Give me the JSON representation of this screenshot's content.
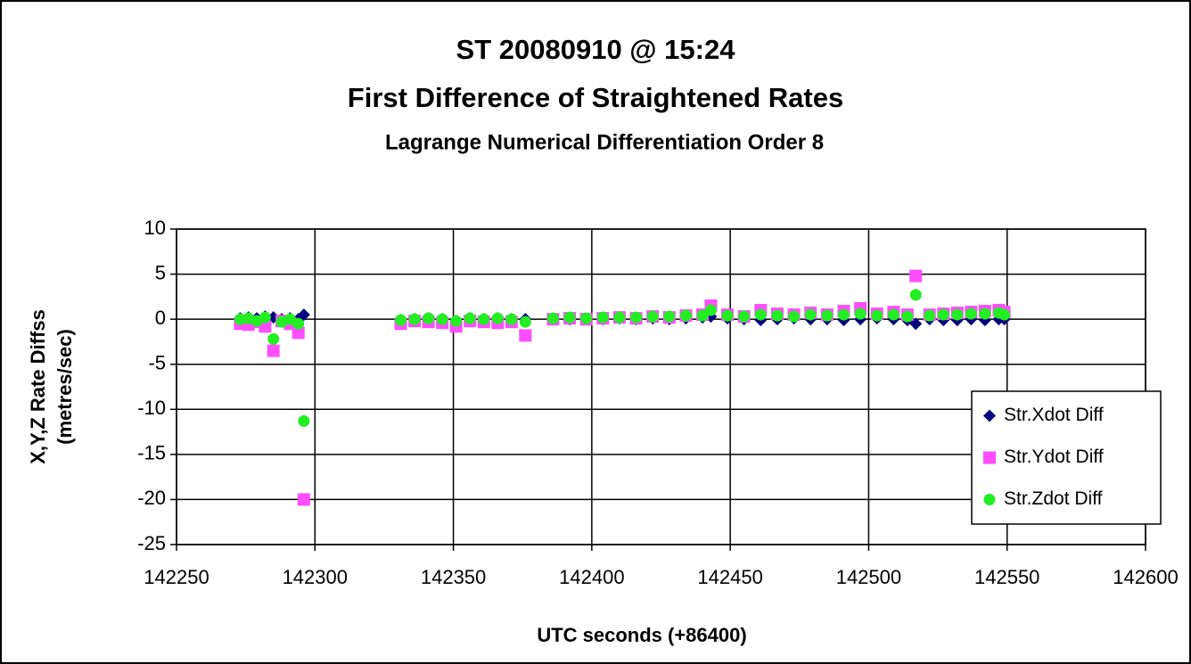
{
  "chart_data": {
    "type": "scatter",
    "title": [
      "ST 20080910 @ 15:24",
      "First Difference of Straightened Rates"
    ],
    "subtitle": "Lagrange Numerical Differentiation Order 8",
    "xlabel": "UTC seconds (+86400)",
    "ylabel": [
      "X,Y,Z Rate Diffss",
      "(metres/sec)"
    ],
    "xlim": [
      142250,
      142600
    ],
    "xticks": [
      142250,
      142300,
      142350,
      142400,
      142450,
      142500,
      142550,
      142600
    ],
    "ylim": [
      -25,
      10
    ],
    "yticks": [
      -25,
      -20,
      -15,
      -10,
      -5,
      0,
      5,
      10
    ],
    "grid": true,
    "legend": "right",
    "x": [
      142273,
      142276,
      142279,
      142282,
      142285,
      142288,
      142291,
      142294,
      142296,
      142331,
      142336,
      142341,
      142346,
      142351,
      142356,
      142361,
      142366,
      142371,
      142376,
      142386,
      142392,
      142398,
      142404,
      142410,
      142416,
      142422,
      142428,
      142434,
      142440,
      142443,
      142449,
      142455,
      142461,
      142467,
      142473,
      142479,
      142485,
      142491,
      142497,
      142503,
      142509,
      142514,
      142517,
      142522,
      142527,
      142532,
      142537,
      142542,
      142547,
      142549
    ],
    "series": [
      {
        "name": "Str.Xdot Diff",
        "color": "#000080",
        "marker": "diamond",
        "values": [
          0.1,
          0.2,
          0.1,
          0.3,
          0.2,
          0,
          0.1,
          0,
          0.5,
          -0.1,
          0,
          0.1,
          0,
          -0.2,
          0.1,
          0,
          0.1,
          0,
          0,
          0,
          0,
          0,
          0,
          0.1,
          0,
          0.1,
          0,
          0.1,
          0.2,
          0.3,
          0.1,
          0,
          -0.1,
          0,
          0.1,
          0,
          0,
          -0.1,
          0,
          0.1,
          0,
          -0.1,
          -0.5,
          0,
          -0.1,
          -0.1,
          0,
          -0.1,
          0,
          0
        ]
      },
      {
        "name": "Str.Ydot Diff",
        "color": "#ff4dff",
        "marker": "square",
        "values": [
          -0.5,
          -0.6,
          -0.3,
          -0.8,
          -3.5,
          -0.2,
          -0.5,
          -1.5,
          -20,
          -0.5,
          -0.2,
          -0.3,
          -0.4,
          -0.8,
          -0.2,
          -0.3,
          -0.4,
          -0.3,
          -1.8,
          0,
          0.1,
          0,
          0.1,
          0.2,
          0.1,
          0.3,
          0.2,
          0.4,
          0.5,
          1.5,
          0.5,
          0.3,
          1.0,
          0.6,
          0.5,
          0.7,
          0.5,
          0.9,
          1.2,
          0.6,
          0.8,
          0.5,
          4.8,
          0.5,
          0.6,
          0.7,
          0.8,
          0.9,
          1.0,
          0.8
        ]
      },
      {
        "name": "Str.Zdot Diff",
        "color": "#22ee22",
        "marker": "circle",
        "values": [
          0,
          0.1,
          -0.2,
          0.2,
          -2.2,
          -0.3,
          0,
          -0.5,
          -11.3,
          -0.1,
          0,
          0.1,
          0,
          -0.2,
          0.1,
          0,
          0.1,
          0,
          -0.3,
          0.1,
          0.2,
          0.1,
          0.2,
          0.2,
          0.2,
          0.3,
          0.3,
          0.4,
          0.4,
          1.0,
          0.4,
          0.3,
          0.5,
          0.4,
          0.3,
          0.5,
          0.4,
          0.5,
          0.6,
          0.4,
          0.5,
          0.3,
          2.7,
          0.4,
          0.5,
          0.5,
          0.6,
          0.6,
          0.7,
          0.5
        ]
      }
    ]
  }
}
